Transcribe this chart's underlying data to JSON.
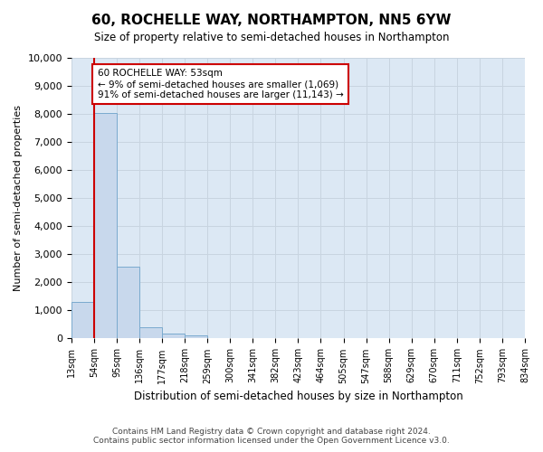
{
  "title": "60, ROCHELLE WAY, NORTHAMPTON, NN5 6YW",
  "subtitle": "Size of property relative to semi-detached houses in Northampton",
  "xlabel_bottom": "Distribution of semi-detached houses by size in Northampton",
  "ylabel": "Number of semi-detached properties",
  "property_label": "60 ROCHELLE WAY: 53sqm",
  "pct_smaller": 9,
  "count_smaller": 1069,
  "pct_larger": 91,
  "count_larger": 11143,
  "footer_line1": "Contains HM Land Registry data © Crown copyright and database right 2024.",
  "footer_line2": "Contains public sector information licensed under the Open Government Licence v3.0.",
  "bin_labels": [
    "13sqm",
    "54sqm",
    "95sqm",
    "136sqm",
    "177sqm",
    "218sqm",
    "259sqm",
    "300sqm",
    "341sqm",
    "382sqm",
    "423sqm",
    "464sqm",
    "505sqm",
    "547sqm",
    "588sqm",
    "629sqm",
    "670sqm",
    "711sqm",
    "752sqm",
    "793sqm",
    "834sqm"
  ],
  "bar_values": [
    1300,
    8050,
    2550,
    400,
    175,
    100,
    0,
    0,
    0,
    0,
    0,
    0,
    0,
    0,
    0,
    0,
    0,
    0,
    0,
    0
  ],
  "bar_color": "#c8d8ec",
  "bar_edge_color": "#7aaace",
  "grid_color": "#c8d4e0",
  "background_color": "#dce8f4",
  "fig_background_color": "#ffffff",
  "annotation_box_color": "#ffffff",
  "annotation_border_color": "#cc0000",
  "vline_color": "#cc0000",
  "ylim": [
    0,
    10000
  ],
  "yticks": [
    0,
    1000,
    2000,
    3000,
    4000,
    5000,
    6000,
    7000,
    8000,
    9000,
    10000
  ]
}
